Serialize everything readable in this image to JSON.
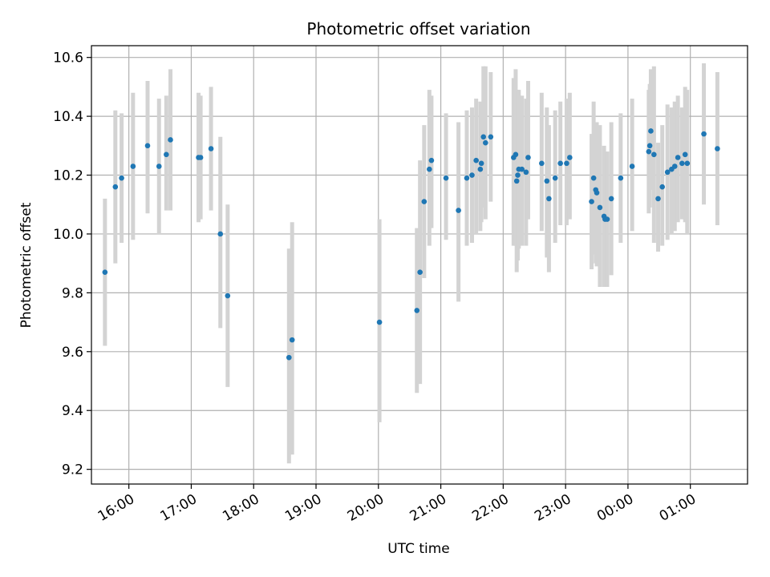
{
  "chart_data": {
    "type": "scatter",
    "title": "Photometric offset variation",
    "xlabel": "UTC time",
    "ylabel": "Photometric offset",
    "xlim": [
      "15:24",
      "01:55"
    ],
    "ylim": [
      9.15,
      10.64
    ],
    "x_ticks": [
      "16:00",
      "17:00",
      "18:00",
      "19:00",
      "20:00",
      "21:00",
      "22:00",
      "23:00",
      "00:00",
      "01:00"
    ],
    "y_ticks": [
      "9.2",
      "9.4",
      "9.6",
      "9.8",
      "10.0",
      "10.2",
      "10.4",
      "10.6"
    ],
    "grid": true,
    "colors": {
      "marker": "#1f77b4",
      "errorbar": "#d3d3d3",
      "grid": "#b0b0b0"
    },
    "series": [
      {
        "points": [
          {
            "x": "15:37",
            "y": 9.87,
            "ylow": 9.62,
            "yhigh": 10.12
          },
          {
            "x": "15:47",
            "y": 10.16,
            "ylow": 9.9,
            "yhigh": 10.42
          },
          {
            "x": "15:53",
            "y": 10.19,
            "ylow": 9.97,
            "yhigh": 10.41
          },
          {
            "x": "16:04",
            "y": 10.23,
            "ylow": 9.98,
            "yhigh": 10.48
          },
          {
            "x": "16:18",
            "y": 10.3,
            "ylow": 10.07,
            "yhigh": 10.52
          },
          {
            "x": "16:29",
            "y": 10.23,
            "ylow": 10.0,
            "yhigh": 10.46
          },
          {
            "x": "16:36",
            "y": 10.27,
            "ylow": 10.08,
            "yhigh": 10.47
          },
          {
            "x": "16:40",
            "y": 10.32,
            "ylow": 10.08,
            "yhigh": 10.56
          },
          {
            "x": "17:07",
            "y": 10.26,
            "ylow": 10.04,
            "yhigh": 10.48
          },
          {
            "x": "17:09",
            "y": 10.26,
            "ylow": 10.05,
            "yhigh": 10.47
          },
          {
            "x": "17:19",
            "y": 10.29,
            "ylow": 10.08,
            "yhigh": 10.5
          },
          {
            "x": "17:28",
            "y": 10.0,
            "ylow": 9.68,
            "yhigh": 10.33
          },
          {
            "x": "17:35",
            "y": 9.79,
            "ylow": 9.48,
            "yhigh": 10.1
          },
          {
            "x": "18:34",
            "y": 9.58,
            "ylow": 9.22,
            "yhigh": 9.95
          },
          {
            "x": "18:37",
            "y": 9.64,
            "ylow": 9.25,
            "yhigh": 10.04
          },
          {
            "x": "20:01",
            "y": 9.7,
            "ylow": 9.36,
            "yhigh": 10.05
          },
          {
            "x": "20:37",
            "y": 9.74,
            "ylow": 9.46,
            "yhigh": 10.02
          },
          {
            "x": "20:40",
            "y": 9.87,
            "ylow": 9.49,
            "yhigh": 10.25
          },
          {
            "x": "20:44",
            "y": 10.11,
            "ylow": 9.85,
            "yhigh": 10.37
          },
          {
            "x": "20:49",
            "y": 10.22,
            "ylow": 9.96,
            "yhigh": 10.49
          },
          {
            "x": "20:51",
            "y": 10.25,
            "ylow": 10.02,
            "yhigh": 10.47
          },
          {
            "x": "21:05",
            "y": 10.19,
            "ylow": 9.98,
            "yhigh": 10.41
          },
          {
            "x": "21:17",
            "y": 10.08,
            "ylow": 9.77,
            "yhigh": 10.38
          },
          {
            "x": "21:25",
            "y": 10.19,
            "ylow": 9.96,
            "yhigh": 10.42
          },
          {
            "x": "21:30",
            "y": 10.2,
            "ylow": 9.97,
            "yhigh": 10.43
          },
          {
            "x": "21:34",
            "y": 10.25,
            "ylow": 10.0,
            "yhigh": 10.46
          },
          {
            "x": "21:38",
            "y": 10.22,
            "ylow": 10.01,
            "yhigh": 10.45
          },
          {
            "x": "21:39",
            "y": 10.24,
            "ylow": 10.04,
            "yhigh": 10.44
          },
          {
            "x": "21:41",
            "y": 10.33,
            "ylow": 10.09,
            "yhigh": 10.57
          },
          {
            "x": "21:43",
            "y": 10.31,
            "ylow": 10.05,
            "yhigh": 10.57
          },
          {
            "x": "21:48",
            "y": 10.33,
            "ylow": 10.11,
            "yhigh": 10.55
          },
          {
            "x": "22:10",
            "y": 10.26,
            "ylow": 9.96,
            "yhigh": 10.53
          },
          {
            "x": "22:12",
            "y": 10.27,
            "ylow": 9.96,
            "yhigh": 10.56
          },
          {
            "x": "22:13",
            "y": 10.18,
            "ylow": 9.87,
            "yhigh": 10.49
          },
          {
            "x": "22:14",
            "y": 10.2,
            "ylow": 9.91,
            "yhigh": 10.49
          },
          {
            "x": "22:15",
            "y": 10.22,
            "ylow": 9.95,
            "yhigh": 10.49
          },
          {
            "x": "22:18",
            "y": 10.22,
            "ylow": 9.96,
            "yhigh": 10.47
          },
          {
            "x": "22:22",
            "y": 10.21,
            "ylow": 9.96,
            "yhigh": 10.46
          },
          {
            "x": "22:24",
            "y": 10.26,
            "ylow": 10.05,
            "yhigh": 10.52
          },
          {
            "x": "22:37",
            "y": 10.24,
            "ylow": 10.01,
            "yhigh": 10.48
          },
          {
            "x": "22:42",
            "y": 10.18,
            "ylow": 9.92,
            "yhigh": 10.43
          },
          {
            "x": "22:44",
            "y": 10.12,
            "ylow": 9.87,
            "yhigh": 10.37
          },
          {
            "x": "22:50",
            "y": 10.19,
            "ylow": 9.97,
            "yhigh": 10.42
          },
          {
            "x": "22:55",
            "y": 10.24,
            "ylow": 10.03,
            "yhigh": 10.45
          },
          {
            "x": "23:01",
            "y": 10.24,
            "ylow": 10.03,
            "yhigh": 10.46
          },
          {
            "x": "23:04",
            "y": 10.26,
            "ylow": 10.05,
            "yhigh": 10.48
          },
          {
            "x": "23:25",
            "y": 10.11,
            "ylow": 9.88,
            "yhigh": 10.34
          },
          {
            "x": "23:27",
            "y": 10.19,
            "ylow": 9.93,
            "yhigh": 10.45
          },
          {
            "x": "23:29",
            "y": 10.15,
            "ylow": 9.9,
            "yhigh": 10.38
          },
          {
            "x": "23:30",
            "y": 10.14,
            "ylow": 9.89,
            "yhigh": 10.38
          },
          {
            "x": "23:33",
            "y": 10.09,
            "ylow": 9.82,
            "yhigh": 10.37
          },
          {
            "x": "23:37",
            "y": 10.06,
            "ylow": 9.82,
            "yhigh": 10.3
          },
          {
            "x": "23:38",
            "y": 10.05,
            "ylow": 9.82,
            "yhigh": 10.28
          },
          {
            "x": "23:40",
            "y": 10.05,
            "ylow": 9.82,
            "yhigh": 10.28
          },
          {
            "x": "23:44",
            "y": 10.12,
            "ylow": 9.86,
            "yhigh": 10.38
          },
          {
            "x": "23:53",
            "y": 10.19,
            "ylow": 9.97,
            "yhigh": 10.41
          },
          {
            "x": "00:04",
            "y": 10.23,
            "ylow": 10.01,
            "yhigh": 10.46
          },
          {
            "x": "00:20",
            "y": 10.28,
            "ylow": 10.07,
            "yhigh": 10.49
          },
          {
            "x": "00:21",
            "y": 10.3,
            "ylow": 10.09,
            "yhigh": 10.51
          },
          {
            "x": "00:22",
            "y": 10.35,
            "ylow": 10.15,
            "yhigh": 10.56
          },
          {
            "x": "00:25",
            "y": 10.27,
            "ylow": 9.97,
            "yhigh": 10.57
          },
          {
            "x": "00:29",
            "y": 10.12,
            "ylow": 9.94,
            "yhigh": 10.31
          },
          {
            "x": "00:33",
            "y": 10.16,
            "ylow": 9.96,
            "yhigh": 10.37
          },
          {
            "x": "00:38",
            "y": 10.21,
            "ylow": 9.98,
            "yhigh": 10.44
          },
          {
            "x": "00:42",
            "y": 10.22,
            "ylow": 10.0,
            "yhigh": 10.43
          },
          {
            "x": "00:45",
            "y": 10.23,
            "ylow": 10.01,
            "yhigh": 10.45
          },
          {
            "x": "00:48",
            "y": 10.26,
            "ylow": 10.04,
            "yhigh": 10.47
          },
          {
            "x": "00:52",
            "y": 10.24,
            "ylow": 10.05,
            "yhigh": 10.43
          },
          {
            "x": "00:55",
            "y": 10.27,
            "ylow": 10.04,
            "yhigh": 10.5
          },
          {
            "x": "00:57",
            "y": 10.24,
            "ylow": 10.0,
            "yhigh": 10.49
          },
          {
            "x": "01:13",
            "y": 10.34,
            "ylow": 10.1,
            "yhigh": 10.58
          },
          {
            "x": "01:26",
            "y": 10.29,
            "ylow": 10.03,
            "yhigh": 10.55
          }
        ]
      }
    ]
  }
}
